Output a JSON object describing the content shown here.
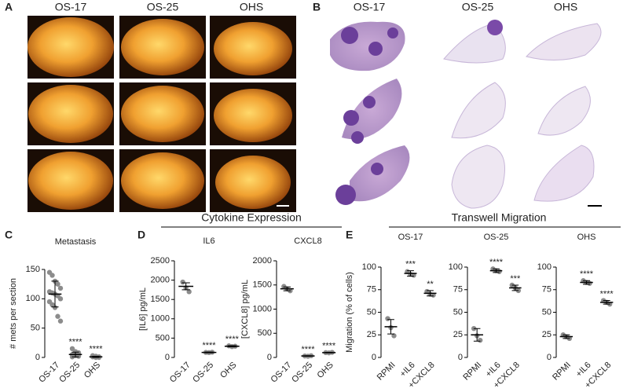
{
  "panel_labels": [
    "A",
    "B",
    "C",
    "D",
    "E"
  ],
  "panel_a": {
    "column_titles": [
      "OS-17",
      "OS-25",
      "OHS"
    ]
  },
  "panel_b": {
    "column_titles": [
      "OS-17",
      "OS-25",
      "OHS"
    ]
  },
  "group_headers": {
    "cytokine": "Cytokine Expression",
    "migration": "Transwell Migration"
  },
  "chart_data": [
    {
      "type": "dot_plot",
      "title": "Metastasis",
      "y_label": "# mets per section",
      "categories": [
        "OS-17",
        "OS-25",
        "OHS"
      ],
      "values": [
        108,
        5,
        1
      ],
      "errors": [
        22,
        4,
        1
      ],
      "points": [
        [
          145,
          140,
          130,
          125,
          118,
          112,
          110,
          108,
          105,
          100,
          95,
          90,
          85,
          70,
          62
        ],
        [
          15,
          10,
          8,
          5,
          3,
          2,
          1
        ],
        [
          3,
          2,
          1,
          1,
          0,
          0
        ]
      ],
      "annotations": [
        null,
        "****",
        "****"
      ],
      "ylim": [
        0,
        150
      ],
      "yticks": [
        0,
        50,
        100,
        150
      ],
      "color": "#8c8c8c"
    },
    {
      "type": "dot_plot",
      "title": "IL6",
      "y_label": "[IL6] pg/mL",
      "categories": [
        "OS-17",
        "OS-25",
        "OHS"
      ],
      "values": [
        1840,
        130,
        290
      ],
      "errors": [
        90,
        10,
        15
      ],
      "points": [
        [
          1950,
          1800,
          1700
        ],
        [
          130,
          125,
          135
        ],
        [
          300,
          280,
          290
        ]
      ],
      "annotations": [
        null,
        "****",
        "****"
      ],
      "ylim": [
        0,
        2500
      ],
      "yticks": [
        0,
        500,
        1000,
        1500,
        2000,
        2500
      ],
      "color": "#8c8c8c"
    },
    {
      "type": "dot_plot",
      "title": "CXCL8",
      "y_label": "[CXCL8] pg/mL",
      "categories": [
        "OS-17",
        "OS-25",
        "OHS"
      ],
      "values": [
        1420,
        30,
        100
      ],
      "errors": [
        40,
        5,
        5
      ],
      "points": [
        [
          1470,
          1420,
          1380
        ],
        [
          30,
          25,
          35
        ],
        [
          100,
          95,
          105
        ]
      ],
      "annotations": [
        null,
        "****",
        "****"
      ],
      "ylim": [
        0,
        2000
      ],
      "yticks": [
        0,
        500,
        1000,
        1500,
        2000
      ],
      "color": "#8c8c8c"
    },
    {
      "type": "dot_plot",
      "title": "OS-17",
      "y_label": "Migration (% of cells)",
      "categories": [
        "RPMI",
        "+IL6",
        "+CXCL8"
      ],
      "values": [
        34,
        93,
        71
      ],
      "errors": [
        8,
        3,
        3
      ],
      "points": [
        [
          43,
          33,
          24
        ],
        [
          95,
          92,
          91
        ],
        [
          73,
          70,
          69
        ]
      ],
      "annotations": [
        null,
        "***",
        "**"
      ],
      "ylim": [
        0,
        100
      ],
      "yticks": [
        0,
        25,
        50,
        75,
        100
      ],
      "color": "#8c8c8c"
    },
    {
      "type": "dot_plot",
      "title": "OS-25",
      "categories": [
        "RPMI",
        "+IL6",
        "+CXCL8"
      ],
      "values": [
        25,
        96,
        77
      ],
      "errors": [
        7,
        2,
        3
      ],
      "points": [
        [
          32,
          24,
          19
        ],
        [
          98,
          96,
          95
        ],
        [
          80,
          77,
          74
        ]
      ],
      "annotations": [
        null,
        "****",
        "***"
      ],
      "ylim": [
        0,
        100
      ],
      "yticks": [
        0,
        25,
        50,
        75,
        100
      ],
      "color": "#8c8c8c"
    },
    {
      "type": "dot_plot",
      "title": "OHS",
      "categories": [
        "RPMI",
        "+IL6",
        "+CXCL8"
      ],
      "values": [
        23,
        83,
        61
      ],
      "errors": [
        2,
        2,
        2
      ],
      "points": [
        [
          25,
          23,
          21
        ],
        [
          85,
          83,
          82
        ],
        [
          63,
          61,
          59
        ]
      ],
      "annotations": [
        null,
        "****",
        "****"
      ],
      "ylim": [
        0,
        100
      ],
      "yticks": [
        0,
        25,
        50,
        75,
        100
      ],
      "color": "#8c8c8c"
    }
  ]
}
